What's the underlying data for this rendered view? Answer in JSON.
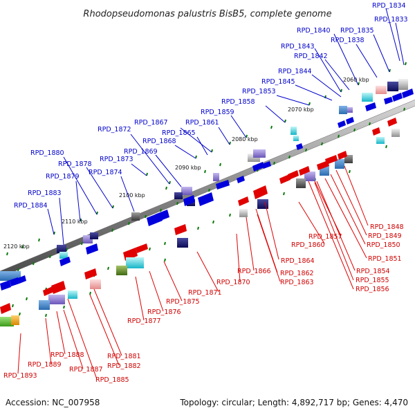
{
  "title": "Rhodopseudomonas palustris BisB5, complete genome",
  "accession": "Accession: NC_007958",
  "summary": "Topology: circular; Length: 4,892,717 bp; Genes: 4,470",
  "kbp_ticks": [
    "2060 kbp",
    "2070 kbp",
    "2080 kbp",
    "2090 kbp",
    "2100 kbp",
    "2110 kbp",
    "2120 kbp"
  ],
  "top_labels": [
    "RPD_1834",
    "RPD_1833",
    "RPD_1835",
    "RPD_1840",
    "RPD_1838",
    "RPD_1843",
    "RPD_1842",
    "RPD_1844",
    "RPD_1845",
    "RPD_1853",
    "RPD_1858",
    "RPD_1859",
    "RPD_1861",
    "RPD_1867",
    "RPD_1865",
    "RPD_1872",
    "RPD_1868",
    "RPD_1869",
    "RPD_1873",
    "RPD_1880",
    "RPD_1878",
    "RPD_1879",
    "RPD_1874",
    "RPD_1883",
    "RPD_1884"
  ],
  "bottom_labels": [
    "RPD_1848",
    "RPD_1849",
    "RPD_1850",
    "RPD_1857",
    "RPD_1851",
    "RPD_1860",
    "RPD_1864",
    "RPD_1854",
    "RPD_1866",
    "RPD_1862",
    "RPD_1855",
    "RPD_1870",
    "RPD_1863",
    "RPD_1856",
    "RPD_1871",
    "RPD_1875",
    "RPD_1876",
    "RPD_1877",
    "RPD_1881",
    "RPD_1888",
    "RPD_1882",
    "RPD_1889",
    "RPD_1887",
    "RPD_1885",
    "RPD_1893"
  ],
  "colors": {
    "forward_strand": "#0000dd",
    "reverse_strand": "#e00000",
    "backbone": "#8c8c8c",
    "tick": "#0a7a0a"
  }
}
